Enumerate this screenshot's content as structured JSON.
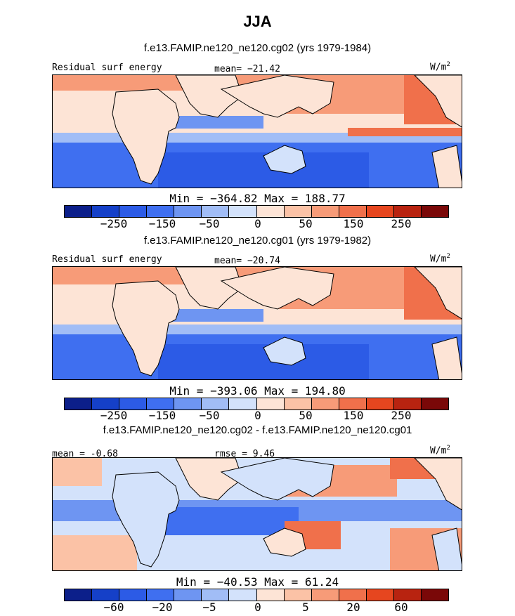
{
  "title": "JJA",
  "panels": [
    {
      "subtitle": "f.e13.FAMIP.ne120_ne120.cg02 (yrs 1979-1984)",
      "left_label": "Residual surf energy",
      "mid_label": "mean= −21.42",
      "units": "W/m",
      "units_sup": "2",
      "minmax": "Min = −364.82 Max = 188.77",
      "ticks": [
        "−250",
        "−150",
        "−50",
        "0",
        "50",
        "150",
        "250"
      ],
      "colors": [
        "#0c1f8a",
        "#1540c8",
        "#2c5be6",
        "#3f6ff0",
        "#6e95f2",
        "#a1bdf6",
        "#d3e2fb",
        "#fde4d6",
        "#fbc2a6",
        "#f79b78",
        "#f0704b",
        "#e6461f",
        "#b82310",
        "#7a0808"
      ]
    },
    {
      "subtitle": "f.e13.FAMIP.ne120_ne120.cg01 (yrs 1979-1982)",
      "left_label": "Residual surf energy",
      "mid_label": "mean= −20.74",
      "units": "W/m",
      "units_sup": "2",
      "minmax": "Min = −393.06 Max = 194.80",
      "ticks": [
        "−250",
        "−150",
        "−50",
        "0",
        "50",
        "150",
        "250"
      ],
      "colors": [
        "#0c1f8a",
        "#1540c8",
        "#2c5be6",
        "#3f6ff0",
        "#6e95f2",
        "#a1bdf6",
        "#d3e2fb",
        "#fde4d6",
        "#fbc2a6",
        "#f79b78",
        "#f0704b",
        "#e6461f",
        "#b82310",
        "#7a0808"
      ]
    },
    {
      "subtitle": "f.e13.FAMIP.ne120_ne120.cg02 - f.e13.FAMIP.ne120_ne120.cg01",
      "left_label": "mean = -0.68",
      "mid_label": "rmse = 9.46",
      "units": "W/m",
      "units_sup": "2",
      "minmax": "Min = −40.53 Max = 61.24",
      "ticks": [
        "−60",
        "−20",
        "−5",
        "0",
        "5",
        "20",
        "60"
      ],
      "colors": [
        "#0c1f8a",
        "#1540c8",
        "#2c5be6",
        "#3f6ff0",
        "#6e95f2",
        "#a1bdf6",
        "#d3e2fb",
        "#fde4d6",
        "#fbc2a6",
        "#f79b78",
        "#f0704b",
        "#e6461f",
        "#b82310",
        "#7a0808"
      ]
    }
  ]
}
